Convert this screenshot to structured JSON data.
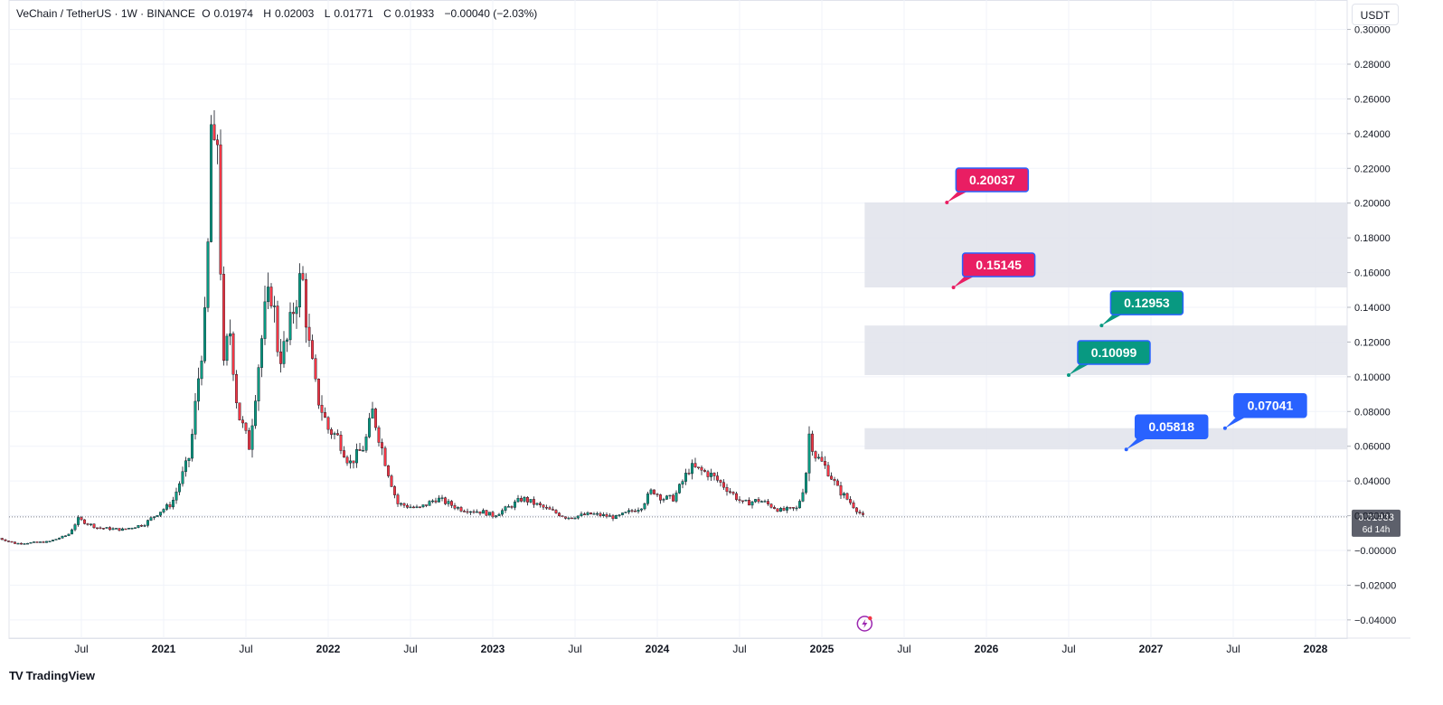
{
  "header": {
    "pair": "VeChain / TetherUS · 1W · BINANCE",
    "open_label": "O",
    "open": "0.01974",
    "high_label": "H",
    "high": "0.02003",
    "low_label": "L",
    "low": "0.01771",
    "close_label": "C",
    "close": "0.01933",
    "change": "−0.00040 (−2.03%)"
  },
  "currency_button": "USDT",
  "price_tag": {
    "value": "0.01933",
    "countdown": "6d 14h"
  },
  "footer": {
    "logo_mark": "TV",
    "brand": "TradingView"
  },
  "colors": {
    "up": "#089981",
    "down": "#f23645",
    "grid": "#f0f3fa",
    "zone": "#e0e3eb",
    "pink": "#e91e63",
    "teal": "#089981",
    "blue": "#2962ff"
  },
  "chart_data": {
    "type": "candlestick",
    "y_axis": {
      "range": [
        -0.045,
        0.305
      ],
      "ticks": [
        "0.30000",
        "0.28000",
        "0.26000",
        "0.24000",
        "0.22000",
        "0.20000",
        "0.18000",
        "0.16000",
        "0.14000",
        "0.12000",
        "0.10000",
        "0.08000",
        "0.06000",
        "0.04000",
        "0.02000",
        "−0.00000",
        "−0.02000",
        "−0.04000"
      ],
      "tick_values": [
        0.3,
        0.28,
        0.26,
        0.24,
        0.22,
        0.2,
        0.18,
        0.16,
        0.14,
        0.12,
        0.1,
        0.08,
        0.06,
        0.04,
        0.02,
        0.0,
        -0.02,
        -0.04
      ]
    },
    "x_axis": {
      "labels": [
        "Jul",
        "2021",
        "Jul",
        "2022",
        "Jul",
        "2023",
        "Jul",
        "2024",
        "Jul",
        "2025",
        "Jul",
        "2026",
        "Jul",
        "2027",
        "Jul",
        "2028"
      ],
      "label_dates": [
        2020.5,
        2021.0,
        2021.5,
        2022.0,
        2022.5,
        2023.0,
        2023.5,
        2024.0,
        2024.5,
        2025.0,
        2025.5,
        2026.0,
        2026.5,
        2027.0,
        2027.5,
        2028.0
      ]
    },
    "key_points": [
      [
        2020.0,
        0.007
      ],
      [
        2020.1,
        0.004
      ],
      [
        2020.3,
        0.005
      ],
      [
        2020.42,
        0.009
      ],
      [
        2020.48,
        0.018
      ],
      [
        2020.6,
        0.013
      ],
      [
        2020.75,
        0.012
      ],
      [
        2020.88,
        0.015
      ],
      [
        2020.97,
        0.022
      ],
      [
        2021.05,
        0.027
      ],
      [
        2021.12,
        0.045
      ],
      [
        2021.16,
        0.055
      ],
      [
        2021.2,
        0.09
      ],
      [
        2021.26,
        0.14
      ],
      [
        2021.29,
        0.25
      ],
      [
        2021.31,
        0.22
      ],
      [
        2021.33,
        0.24
      ],
      [
        2021.36,
        0.1
      ],
      [
        2021.4,
        0.13
      ],
      [
        2021.45,
        0.08
      ],
      [
        2021.52,
        0.06
      ],
      [
        2021.58,
        0.11
      ],
      [
        2021.62,
        0.14
      ],
      [
        2021.66,
        0.15
      ],
      [
        2021.7,
        0.11
      ],
      [
        2021.75,
        0.12
      ],
      [
        2021.79,
        0.14
      ],
      [
        2021.84,
        0.16
      ],
      [
        2021.88,
        0.12
      ],
      [
        2021.93,
        0.09
      ],
      [
        2022.0,
        0.07
      ],
      [
        2022.06,
        0.065
      ],
      [
        2022.13,
        0.05
      ],
      [
        2022.22,
        0.06
      ],
      [
        2022.27,
        0.08
      ],
      [
        2022.35,
        0.05
      ],
      [
        2022.42,
        0.027
      ],
      [
        2022.55,
        0.024
      ],
      [
        2022.66,
        0.03
      ],
      [
        2022.8,
        0.024
      ],
      [
        2022.95,
        0.022
      ],
      [
        2023.0,
        0.02
      ],
      [
        2023.1,
        0.025
      ],
      [
        2023.18,
        0.03
      ],
      [
        2023.3,
        0.025
      ],
      [
        2023.45,
        0.019
      ],
      [
        2023.6,
        0.021
      ],
      [
        2023.75,
        0.019
      ],
      [
        2023.9,
        0.025
      ],
      [
        2023.97,
        0.035
      ],
      [
        2024.03,
        0.03
      ],
      [
        2024.1,
        0.03
      ],
      [
        2024.2,
        0.048
      ],
      [
        2024.32,
        0.044
      ],
      [
        2024.42,
        0.036
      ],
      [
        2024.52,
        0.027
      ],
      [
        2024.62,
        0.029
      ],
      [
        2024.75,
        0.023
      ],
      [
        2024.85,
        0.024
      ],
      [
        2024.9,
        0.04
      ],
      [
        2024.92,
        0.068
      ],
      [
        2024.96,
        0.055
      ],
      [
        2025.03,
        0.047
      ],
      [
        2025.1,
        0.035
      ],
      [
        2025.18,
        0.027
      ],
      [
        2025.25,
        0.0195
      ]
    ],
    "zones": [
      {
        "low": 0.15145,
        "high": 0.20037,
        "start": 2025.26,
        "end": 2028.2
      },
      {
        "low": 0.10099,
        "high": 0.12953,
        "start": 2025.26,
        "end": 2028.2
      },
      {
        "low": 0.05818,
        "high": 0.07041,
        "start": 2025.26,
        "end": 2028.2
      }
    ],
    "labels": [
      {
        "text": "0.20037",
        "value": 0.20037,
        "anchor_date": 2025.76,
        "color": "pink"
      },
      {
        "text": "0.15145",
        "value": 0.15145,
        "anchor_date": 2025.8,
        "color": "pink"
      },
      {
        "text": "0.12953",
        "value": 0.12953,
        "anchor_date": 2026.7,
        "color": "teal"
      },
      {
        "text": "0.10099",
        "value": 0.10099,
        "anchor_date": 2026.5,
        "color": "teal"
      },
      {
        "text": "0.07041",
        "value": 0.07041,
        "anchor_date": 2027.45,
        "color": "blue"
      },
      {
        "text": "0.05818",
        "value": 0.05818,
        "anchor_date": 2026.85,
        "color": "blue"
      }
    ],
    "last_price": 0.01933
  }
}
